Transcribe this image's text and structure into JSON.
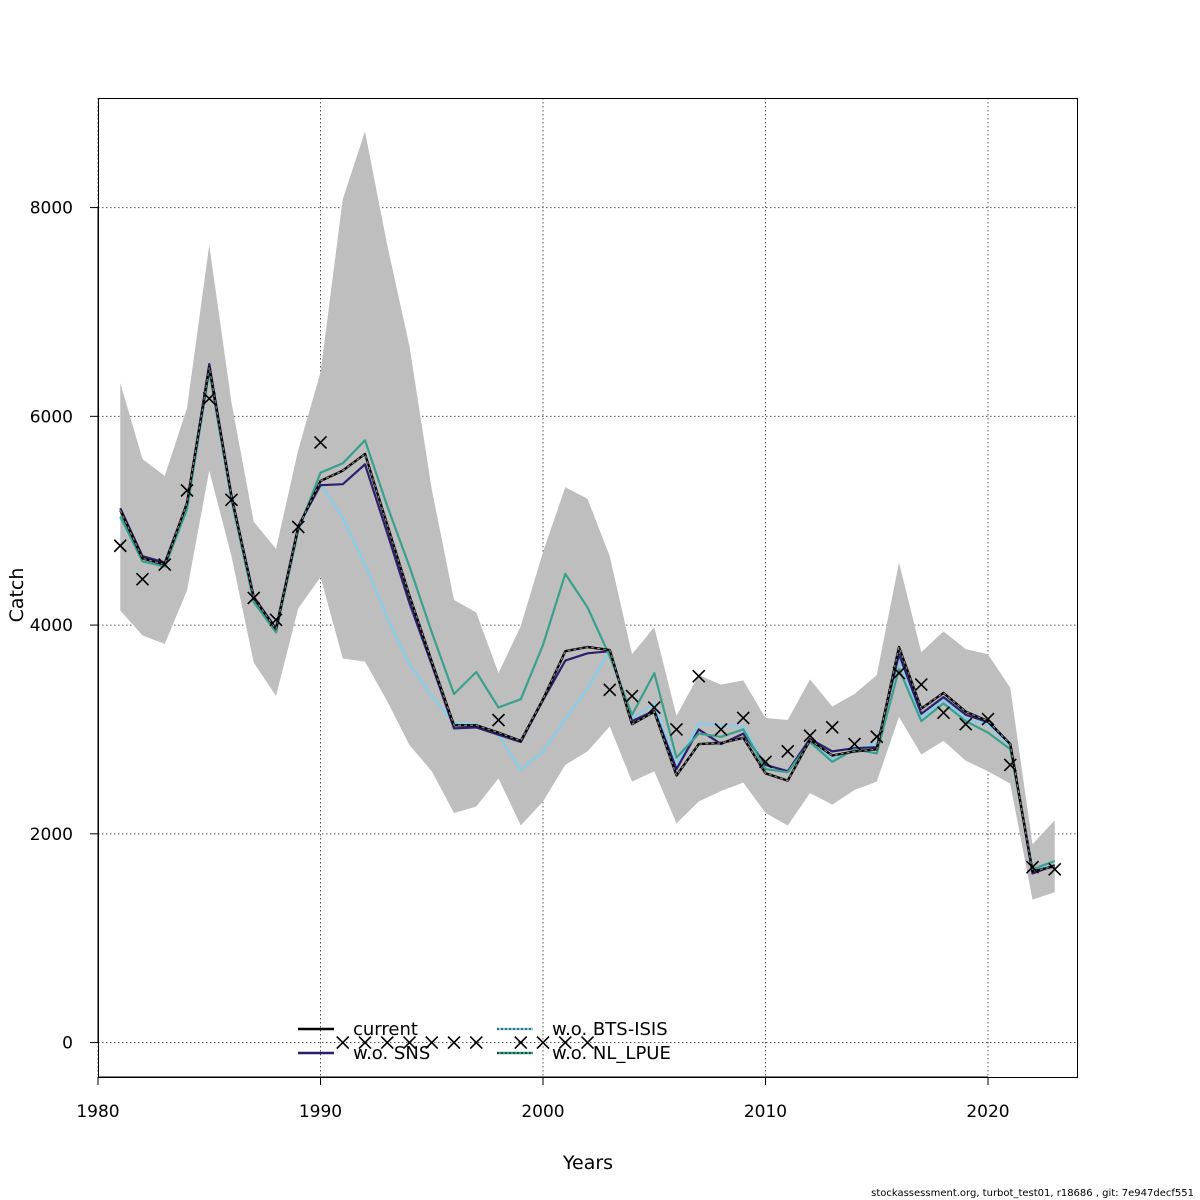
{
  "chart_data": {
    "type": "line",
    "xlabel": "Years",
    "ylabel": "Catch",
    "xlim": [
      1980,
      2024
    ],
    "ylim": [
      -330,
      9050
    ],
    "x_ticks": [
      "1980",
      "1990",
      "2000",
      "2010",
      "2020"
    ],
    "y_ticks": [
      "0",
      "2000",
      "4000",
      "6000",
      "8000"
    ],
    "grid": true,
    "legend_position": "bottom-center",
    "footer": "stockassessment.org, turbot_test01, r18686 , git: 7e947decf551",
    "colors": {
      "band": "#bebebe",
      "current": "#000000",
      "sns": "#2d1e6b",
      "bts": "#87ceeb",
      "nl": "#3aa08c"
    },
    "ci_band": {
      "x": [
        1981,
        1982,
        1983,
        1984,
        1985,
        1986,
        1987,
        1988,
        1989,
        1990,
        1991,
        1992,
        1993,
        1994,
        1995,
        1996,
        1997,
        1998,
        1999,
        2000,
        2001,
        2002,
        2003,
        2004,
        2005,
        2006,
        2007,
        2008,
        2009,
        2010,
        2011,
        2012,
        2013,
        2014,
        2015,
        2016,
        2017,
        2018,
        2019,
        2020,
        2021,
        2022,
        2023
      ],
      "upper": [
        6320,
        5590,
        5430,
        6080,
        7640,
        6130,
        4990,
        4730,
        5680,
        6420,
        8080,
        8730,
        7640,
        6670,
        5300,
        4240,
        4120,
        3540,
        3990,
        4700,
        5320,
        5210,
        4660,
        3720,
        3980,
        3130,
        3520,
        3430,
        3470,
        3110,
        3090,
        3480,
        3220,
        3340,
        3520,
        4600,
        3740,
        3940,
        3770,
        3720,
        3400,
        1900,
        2130
      ],
      "lower": [
        4140,
        3900,
        3820,
        4330,
        5480,
        4660,
        3640,
        3320,
        4160,
        4460,
        3680,
        3650,
        3270,
        2850,
        2600,
        2200,
        2260,
        2530,
        2080,
        2310,
        2660,
        2790,
        3030,
        2500,
        2600,
        2100,
        2310,
        2410,
        2490,
        2200,
        2080,
        2390,
        2280,
        2420,
        2500,
        3120,
        2760,
        2890,
        2700,
        2600,
        2480,
        1370,
        1440
      ]
    },
    "series": [
      {
        "name": "current",
        "x": [
          1981,
          1982,
          1983,
          1984,
          1985,
          1986,
          1987,
          1988,
          1989,
          1990,
          1991,
          1992,
          1993,
          1994,
          1995,
          1996,
          1997,
          1998,
          1999,
          2000,
          2001,
          2002,
          2003,
          2004,
          2005,
          2006,
          2007,
          2008,
          2009,
          2010,
          2011,
          2012,
          2013,
          2014,
          2015,
          2016,
          2017,
          2018,
          2019,
          2020,
          2021,
          2022,
          2023
        ],
        "values": [
          5100,
          4640,
          4580,
          5170,
          6470,
          5230,
          4260,
          3960,
          4940,
          5380,
          5480,
          5640,
          4960,
          4280,
          3650,
          3040,
          3040,
          2970,
          2890,
          3290,
          3750,
          3790,
          3760,
          3050,
          3170,
          2560,
          2860,
          2870,
          2920,
          2580,
          2510,
          2900,
          2750,
          2790,
          2810,
          3790,
          3200,
          3350,
          3170,
          3080,
          2860,
          1640,
          1690
        ]
      },
      {
        "name": "w.o. SNS",
        "x": [
          1981,
          1982,
          1983,
          1984,
          1985,
          1986,
          1987,
          1988,
          1989,
          1990,
          1991,
          1992,
          1993,
          1994,
          1995,
          1996,
          1997,
          1998,
          1999,
          2000,
          2001,
          2002,
          2003,
          2004,
          2005,
          2006,
          2007,
          2008,
          2009,
          2010,
          2011,
          2012,
          2013,
          2014,
          2015,
          2016,
          2017,
          2018,
          2019,
          2020,
          2021,
          2022,
          2023
        ],
        "values": [
          5120,
          4660,
          4600,
          5160,
          6500,
          5240,
          4270,
          3970,
          4950,
          5340,
          5350,
          5540,
          4880,
          4210,
          3620,
          3010,
          3020,
          2950,
          2880,
          3280,
          3660,
          3730,
          3750,
          3080,
          3180,
          2620,
          3000,
          2860,
          2960,
          2660,
          2600,
          2910,
          2790,
          2820,
          2830,
          3720,
          3150,
          3310,
          3140,
          3070,
          2860,
          1620,
          1700
        ]
      },
      {
        "name": "w.o. BTS-ISIS",
        "x": [
          1981,
          1982,
          1983,
          1984,
          1985,
          1986,
          1987,
          1988,
          1989,
          1990,
          1991,
          1992,
          1993,
          1994,
          1995,
          1996,
          1997,
          1998,
          1999,
          2000,
          2001,
          2002,
          2003,
          2004,
          2005,
          2006,
          2007,
          2008,
          2009,
          2010,
          2011,
          2012,
          2013,
          2014,
          2015,
          2016,
          2017,
          2018,
          2019,
          2020,
          2021,
          2022,
          2023
        ],
        "values": [
          5030,
          4610,
          4570,
          5100,
          6430,
          5190,
          4230,
          3940,
          4920,
          5360,
          5020,
          4580,
          4070,
          3620,
          3320,
          3060,
          3050,
          2950,
          2610,
          2790,
          3100,
          3390,
          3760,
          3100,
          3250,
          2650,
          3060,
          3040,
          3030,
          2650,
          2600,
          2880,
          2720,
          2800,
          2870,
          3680,
          3110,
          3290,
          3100,
          3050,
          2840,
          1650,
          1700
        ]
      },
      {
        "name": "w.o. NL_LPUE",
        "x": [
          1981,
          1982,
          1983,
          1984,
          1985,
          1986,
          1987,
          1988,
          1989,
          1990,
          1991,
          1992,
          1993,
          1994,
          1995,
          1996,
          1997,
          1998,
          1999,
          2000,
          2001,
          2002,
          2003,
          2004,
          2005,
          2006,
          2007,
          2008,
          2009,
          2010,
          2011,
          2012,
          2013,
          2014,
          2015,
          2016,
          2017,
          2018,
          2019,
          2020,
          2021,
          2022,
          2023
        ],
        "values": [
          5040,
          4610,
          4560,
          5110,
          6440,
          5200,
          4220,
          3930,
          4910,
          5460,
          5550,
          5770,
          5140,
          4560,
          3930,
          3340,
          3550,
          3210,
          3290,
          3810,
          4490,
          4170,
          3700,
          3140,
          3540,
          2730,
          2960,
          2930,
          3000,
          2620,
          2590,
          2880,
          2690,
          2810,
          2770,
          3580,
          3080,
          3250,
          3080,
          2970,
          2810,
          1660,
          1740
        ]
      }
    ],
    "observations": {
      "name": "observed catch",
      "x": [
        1981,
        1982,
        1983,
        1984,
        1985,
        1986,
        1987,
        1988,
        1989,
        1990,
        1991,
        1992,
        1993,
        1994,
        1995,
        1996,
        1997,
        1998,
        1999,
        2000,
        2001,
        2002,
        2003,
        2004,
        2005,
        2006,
        2007,
        2008,
        2009,
        2010,
        2011,
        2012,
        2013,
        2014,
        2015,
        2016,
        2017,
        2018,
        2019,
        2020,
        2021,
        2022,
        2023
      ],
      "values": [
        4760,
        4440,
        4580,
        5290,
        6170,
        5200,
        4260,
        4050,
        4940,
        5750,
        0,
        0,
        0,
        0,
        0,
        0,
        0,
        3090,
        0,
        0,
        0,
        0,
        3380,
        3320,
        3210,
        3000,
        3510,
        3000,
        3110,
        2690,
        2790,
        2940,
        3020,
        2860,
        2930,
        3540,
        3430,
        3160,
        3050,
        3100,
        2660,
        1680,
        1660
      ]
    },
    "legend": [
      {
        "label": "current",
        "color": "#000000",
        "style": "solid"
      },
      {
        "label": "w.o. SNS",
        "color": "#2d1e6b",
        "style": "solid"
      },
      {
        "label": "w.o. BTS-ISIS",
        "color": "#87ceeb",
        "style": "dotted"
      },
      {
        "label": "w.o. NL_LPUE",
        "color": "#3aa08c",
        "style": "dotted"
      }
    ]
  }
}
